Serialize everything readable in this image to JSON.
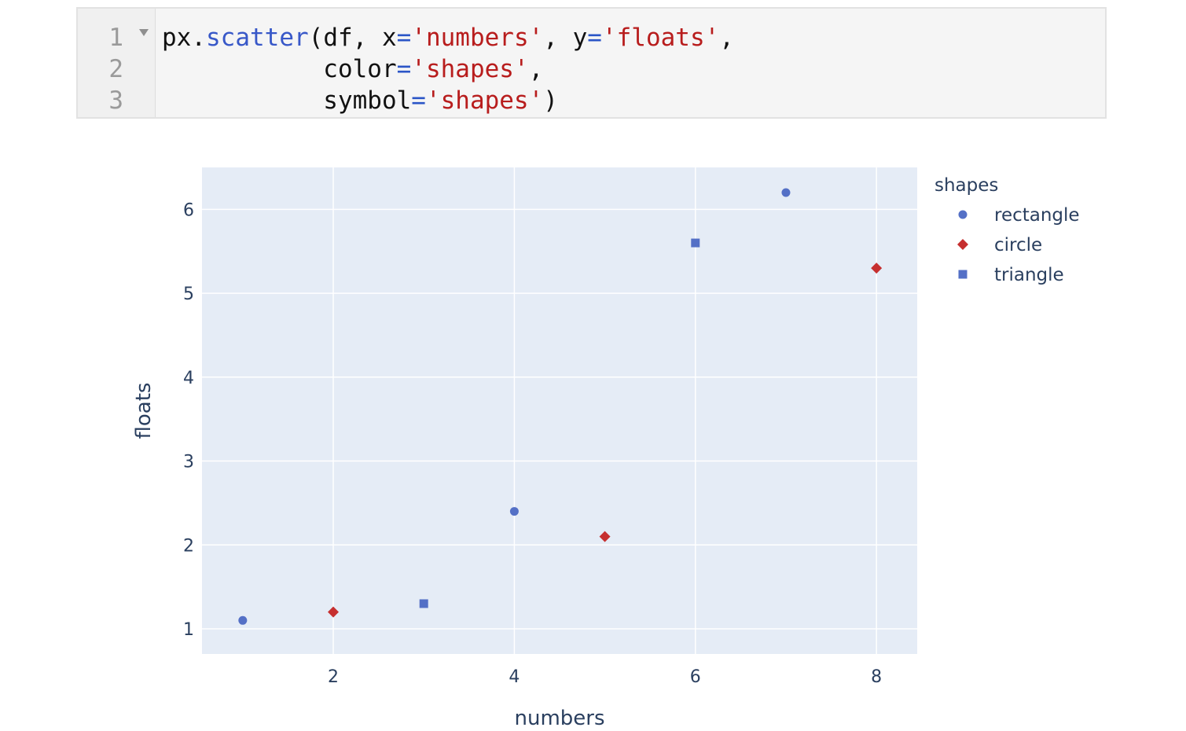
{
  "code": {
    "line_numbers": [
      "1",
      "2",
      "3"
    ],
    "lines": [
      [
        {
          "t": "px",
          "k": "plain"
        },
        {
          "t": ".",
          "k": "plain"
        },
        {
          "t": "scatter",
          "k": "fn"
        },
        {
          "t": "(df, x",
          "k": "plain"
        },
        {
          "t": "=",
          "k": "op"
        },
        {
          "t": "'numbers'",
          "k": "str"
        },
        {
          "t": ", y",
          "k": "plain"
        },
        {
          "t": "=",
          "k": "op"
        },
        {
          "t": "'floats'",
          "k": "str"
        },
        {
          "t": ",",
          "k": "plain"
        }
      ],
      [
        {
          "t": "           color",
          "k": "plain"
        },
        {
          "t": "=",
          "k": "op"
        },
        {
          "t": "'shapes'",
          "k": "str"
        },
        {
          "t": ",",
          "k": "plain"
        }
      ],
      [
        {
          "t": "           symbol",
          "k": "plain"
        },
        {
          "t": "=",
          "k": "op"
        },
        {
          "t": "'shapes'",
          "k": "str"
        },
        {
          "t": ")",
          "k": "plain"
        }
      ]
    ]
  },
  "chart_data": {
    "type": "scatter",
    "xlabel": "numbers",
    "ylabel": "floats",
    "xlim": [
      0.55,
      8.45
    ],
    "ylim": [
      0.7,
      6.5
    ],
    "xticks": [
      2,
      4,
      6,
      8
    ],
    "yticks": [
      1,
      2,
      3,
      4,
      5,
      6
    ],
    "grid": true,
    "legend": {
      "title": "shapes",
      "placement": "right"
    },
    "series": [
      {
        "name": "rectangle",
        "symbol": "circle",
        "color": "#5470c6",
        "x": [
          1,
          4,
          7
        ],
        "y": [
          1.1,
          2.4,
          6.2
        ]
      },
      {
        "name": "circle",
        "symbol": "diamond",
        "color": "#c62f2f",
        "x": [
          2,
          5,
          8
        ],
        "y": [
          1.2,
          2.1,
          5.3
        ]
      },
      {
        "name": "triangle",
        "symbol": "square",
        "color": "#5470c6",
        "x": [
          3,
          6
        ],
        "y": [
          1.3,
          5.6
        ]
      }
    ],
    "colors": {
      "plot_bg": "#e5ecf6",
      "grid": "#ffffff",
      "text": "#2a3f5f"
    }
  }
}
